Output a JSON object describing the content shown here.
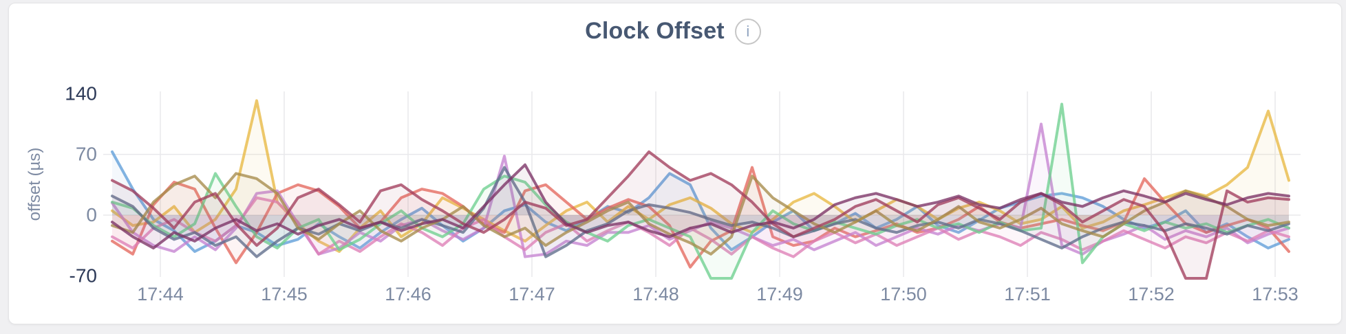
{
  "header": {
    "title": "Clock Offset",
    "info_glyph": "i"
  },
  "colors": {
    "page_bg": "#f0f0f2",
    "card_bg": "#ffffff",
    "card_border": "#e4e4e6",
    "title": "#475872",
    "axis_tick": "#7d8aa2",
    "axis_tick_extreme": "#2c3957",
    "gridline": "#e9e9eb",
    "info_icon_border": "#c6c6c6",
    "info_icon_glyph": "#8fa3c0"
  },
  "chart_data": {
    "type": "line",
    "title": "Clock Offset",
    "xlabel": "",
    "ylabel": "offset (µs)",
    "ylim": [
      -70,
      140
    ],
    "y_ticks": [
      140,
      70,
      0,
      -70
    ],
    "grid_y_values": [
      70,
      0
    ],
    "x_tick_labels": [
      "17:44",
      "17:45",
      "17:46",
      "17:47",
      "17:48",
      "17:49",
      "17:50",
      "17:51",
      "17:52",
      "17:53"
    ],
    "legend": "none",
    "grid": true,
    "point_interval_seconds": 10,
    "series": [
      {
        "id": "node-blue",
        "color": "#5f9ed8",
        "values": [
          73,
          30,
          -5,
          -18,
          -42,
          -30,
          -12,
          -20,
          -35,
          -28,
          -10,
          -25,
          -38,
          -20,
          -5,
          8,
          -12,
          -30,
          -15,
          5,
          12,
          -8,
          -18,
          -5,
          10,
          3,
          20,
          48,
          35,
          -15,
          -40,
          -25,
          -8,
          5,
          -18,
          -10,
          2,
          -15,
          -5,
          10,
          -12,
          -20,
          -6,
          8,
          15,
          22,
          25,
          20,
          10,
          -5,
          -15,
          -8,
          5,
          -20,
          -10,
          -25,
          -38,
          -28
        ]
      },
      {
        "id": "node-gold",
        "color": "#e8b843",
        "values": [
          5,
          -12,
          -8,
          10,
          -20,
          -5,
          30,
          132,
          15,
          -10,
          -30,
          -42,
          -15,
          5,
          -25,
          -10,
          20,
          8,
          -5,
          -18,
          -30,
          -12,
          5,
          15,
          -8,
          10,
          -5,
          12,
          20,
          8,
          -10,
          -20,
          -5,
          15,
          25,
          10,
          -8,
          5,
          18,
          10,
          -5,
          8,
          15,
          5,
          -10,
          -5,
          10,
          -15,
          -8,
          5,
          12,
          20,
          28,
          22,
          35,
          55,
          120,
          40
        ]
      },
      {
        "id": "node-salmon",
        "color": "#e4685e",
        "values": [
          -30,
          -45,
          12,
          38,
          30,
          -15,
          -55,
          -20,
          25,
          35,
          28,
          10,
          -15,
          -8,
          20,
          30,
          25,
          10,
          -10,
          -20,
          28,
          35,
          15,
          -5,
          8,
          18,
          10,
          -12,
          -60,
          -30,
          -18,
          55,
          -25,
          -35,
          -30,
          -15,
          -25,
          -18,
          -10,
          -20,
          -15,
          -5,
          10,
          -8,
          -15,
          -10,
          -5,
          -12,
          -18,
          -8,
          42,
          15,
          -10,
          -20,
          -12,
          -5,
          -15,
          -42
        ]
      },
      {
        "id": "node-orchid",
        "color": "#c583d1",
        "values": [
          14,
          -20,
          -35,
          -42,
          -25,
          -40,
          -15,
          25,
          28,
          -10,
          -45,
          -38,
          -20,
          -30,
          -12,
          -5,
          -18,
          -28,
          -15,
          68,
          -48,
          -45,
          -30,
          -35,
          -20,
          -20,
          -12,
          -28,
          -18,
          -8,
          -15,
          -25,
          -35,
          -28,
          -40,
          -30,
          -20,
          -35,
          -25,
          -15,
          -22,
          -12,
          -18,
          -10,
          -15,
          105,
          -35,
          -45,
          -30,
          -22,
          -12,
          -28,
          -18,
          -25,
          -15,
          -32,
          -22,
          -15
        ]
      },
      {
        "id": "node-pink",
        "color": "#de7fb6",
        "values": [
          -25,
          -38,
          -15,
          -5,
          -20,
          -30,
          -12,
          20,
          15,
          -8,
          -45,
          -30,
          -42,
          -25,
          -10,
          -20,
          -35,
          -15,
          -5,
          -25,
          -40,
          -20,
          -10,
          -30,
          -18,
          -8,
          -20,
          -35,
          -15,
          -28,
          -45,
          -25,
          -38,
          -48,
          -30,
          -20,
          -32,
          -22,
          -35,
          -25,
          -15,
          -28,
          -18,
          -25,
          -35,
          -20,
          -28,
          -40,
          -30,
          -18,
          -28,
          -38,
          -25,
          -32,
          -20,
          -30,
          -18,
          -25
        ]
      },
      {
        "id": "node-green",
        "color": "#6ecf8f",
        "values": [
          15,
          8,
          -12,
          -25,
          -10,
          48,
          10,
          -25,
          -38,
          -15,
          -5,
          -40,
          -28,
          -10,
          5,
          -15,
          -25,
          -10,
          30,
          45,
          38,
          12,
          -8,
          -20,
          -30,
          -12,
          -5,
          -15,
          -25,
          -85,
          -90,
          -20,
          5,
          -10,
          -18,
          -8,
          -15,
          -22,
          -12,
          -5,
          -15,
          -10,
          -20,
          -8,
          -18,
          -15,
          128,
          -55,
          -25,
          -10,
          -18,
          -8,
          -15,
          -10,
          -20,
          -12,
          -5,
          -15
        ]
      },
      {
        "id": "node-slate",
        "color": "#5f6d8c",
        "values": [
          22,
          10,
          -15,
          -28,
          -20,
          -35,
          -25,
          -48,
          -30,
          -15,
          -22,
          -10,
          -18,
          -8,
          -15,
          -5,
          -12,
          -20,
          8,
          55,
          15,
          -48,
          -35,
          -18,
          -10,
          5,
          12,
          8,
          3,
          -5,
          -12,
          -8,
          -15,
          -25,
          -18,
          -10,
          -5,
          -15,
          -20,
          -12,
          -8,
          -15,
          -5,
          -10,
          -18,
          -28,
          -38,
          -25,
          -15,
          -8,
          -12,
          -18,
          -10,
          -15,
          -22,
          -12,
          -18,
          -10
        ]
      },
      {
        "id": "node-olive",
        "color": "#a78c4b",
        "values": [
          -12,
          -20,
          15,
          35,
          45,
          20,
          48,
          42,
          25,
          -15,
          -28,
          -10,
          5,
          -18,
          -30,
          -15,
          -5,
          10,
          -12,
          -25,
          -15,
          -35,
          -20,
          -8,
          5,
          15,
          -10,
          -22,
          -32,
          -45,
          -25,
          45,
          20,
          5,
          -10,
          -20,
          -8,
          5,
          -12,
          -18,
          -5,
          10,
          -8,
          -15,
          -5,
          8,
          -10,
          -18,
          -25,
          -10,
          5,
          15,
          28,
          20,
          10,
          -5,
          -12,
          -8
        ]
      },
      {
        "id": "node-wine",
        "color": "#a23e5c",
        "values": [
          40,
          28,
          8,
          -15,
          15,
          25,
          -10,
          -35,
          -15,
          20,
          30,
          12,
          -8,
          28,
          35,
          18,
          5,
          -10,
          -20,
          -5,
          15,
          8,
          -12,
          -5,
          20,
          45,
          73,
          55,
          40,
          48,
          35,
          15,
          -10,
          -25,
          -15,
          -5,
          10,
          18,
          5,
          -8,
          12,
          20,
          8,
          -5,
          15,
          25,
          12,
          -8,
          5,
          18,
          10,
          -20,
          -90,
          -85,
          28,
          15,
          20,
          18
        ]
      },
      {
        "id": "node-plum",
        "color": "#7b3265",
        "values": [
          -8,
          -25,
          -38,
          -20,
          -30,
          -15,
          -5,
          -18,
          -10,
          -22,
          -12,
          -5,
          -15,
          -8,
          -18,
          -10,
          -5,
          -15,
          10,
          35,
          58,
          15,
          -10,
          -20,
          -12,
          -8,
          -18,
          -25,
          -15,
          -10,
          -20,
          -12,
          -8,
          -15,
          -5,
          12,
          20,
          25,
          18,
          10,
          15,
          22,
          12,
          8,
          18,
          25,
          15,
          10,
          20,
          28,
          22,
          15,
          25,
          18,
          12,
          20,
          25,
          22
        ]
      }
    ]
  }
}
